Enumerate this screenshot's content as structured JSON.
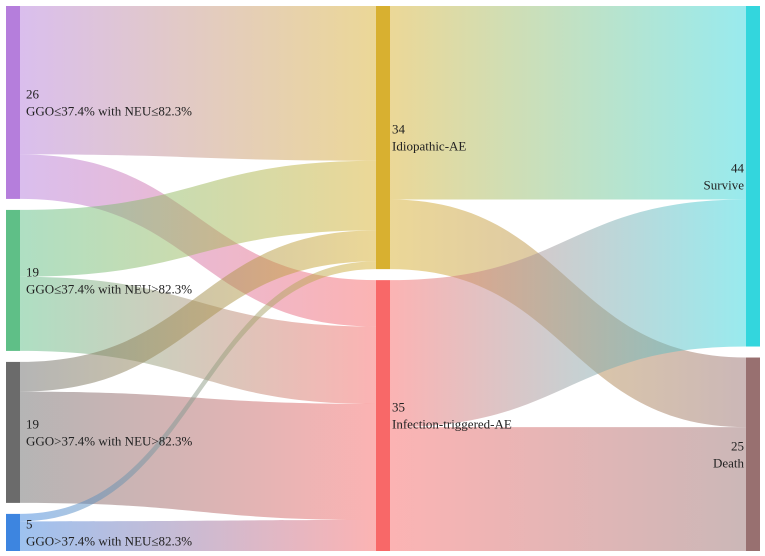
{
  "chart_data": {
    "type": "sankey",
    "title": "",
    "columns": [
      [
        {
          "id": "s1",
          "count_label": "26",
          "label": "GGO≤37.4% with NEU≤82.3%",
          "value": 26,
          "color": "#b57edc"
        },
        {
          "id": "s2",
          "count_label": "19",
          "label": "GGO≤37.4% with NEU>82.3%",
          "value": 19,
          "color": "#5fbf87"
        },
        {
          "id": "s3",
          "count_label": "19",
          "label": "GGO>37.4% with NEU>82.3%",
          "value": 19,
          "color": "#6b6b6b"
        },
        {
          "id": "s4",
          "count_label": "5",
          "label": "GGO>37.4% with NEU≤82.3%",
          "value": 5,
          "color": "#3d85e0"
        }
      ],
      [
        {
          "id": "m1",
          "count_label": "34",
          "label": "Idiopathic-AE",
          "value": 34,
          "color": "#d8b030"
        },
        {
          "id": "m2",
          "count_label": "35",
          "label": "Infection-triggered-AE",
          "value": 35,
          "color": "#f86868"
        }
      ],
      [
        {
          "id": "o1",
          "count_label": "44",
          "label": "Survive",
          "value": 44,
          "color": "#33d6dd"
        },
        {
          "id": "o2",
          "count_label": "25",
          "label": "Death",
          "value": 25,
          "color": "#987070"
        }
      ]
    ],
    "links": [
      {
        "source": "s1",
        "target": "m1",
        "value": 20
      },
      {
        "source": "s1",
        "target": "m2",
        "value": 6
      },
      {
        "source": "s2",
        "target": "m1",
        "value": 9
      },
      {
        "source": "s2",
        "target": "m2",
        "value": 10
      },
      {
        "source": "s3",
        "target": "m1",
        "value": 4
      },
      {
        "source": "s3",
        "target": "m2",
        "value": 15
      },
      {
        "source": "s4",
        "target": "m1",
        "value": 1
      },
      {
        "source": "s4",
        "target": "m2",
        "value": 4
      },
      {
        "source": "m1",
        "target": "o1",
        "value": 25
      },
      {
        "source": "m1",
        "target": "o2",
        "value": 9
      },
      {
        "source": "m2",
        "target": "o1",
        "value": 19
      },
      {
        "source": "m2",
        "target": "o2",
        "value": 16
      }
    ]
  }
}
